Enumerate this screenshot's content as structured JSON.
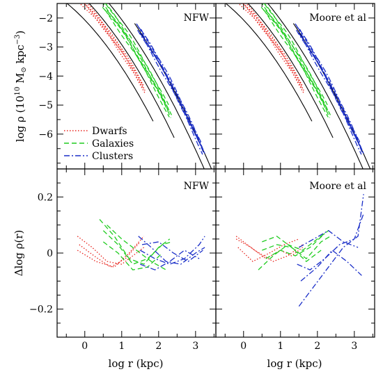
{
  "chart_data": {
    "type": "line",
    "x_range": [
      -0.75,
      3.55
    ],
    "x_ticks": [
      0,
      1,
      2,
      3
    ],
    "x_label": "log r (kpc)",
    "top": {
      "y_range": [
        -7.2,
        -1.5
      ],
      "y_ticks": [
        -2,
        -3,
        -4,
        -5,
        -6
      ],
      "y_label_prefix": "log ρ (10",
      "y_label_exp1": "10",
      "y_label_mid": " M",
      "y_label_sun": "⊙",
      "y_label_mid2": " kpc",
      "y_label_exp2": "−3",
      "y_label_suffix": ")"
    },
    "bottom": {
      "y_range": [
        -0.3,
        0.3
      ],
      "y_ticks": [
        0.2,
        0,
        -0.2
      ],
      "y_label": "Δlog ρ(r)"
    },
    "panels": [
      {
        "label": "NFW"
      },
      {
        "label": "Moore et al"
      }
    ],
    "legend": {
      "placement": "bottom-left of top-left panel",
      "entries": [
        {
          "name": "Dwarfs",
          "style": "dotted",
          "color": "#e8231c"
        },
        {
          "name": "Galaxies",
          "style": "dashed",
          "color": "#1fcc1f"
        },
        {
          "name": "Clusters",
          "style": "dashdot",
          "color": "#1a2ec8"
        }
      ]
    },
    "profile_series": [
      {
        "group": "Dwarfs",
        "range": [
          -0.25,
          1.65
        ],
        "offsets": [
          0,
          -0.06,
          0.05,
          -0.1,
          0.08
        ]
      },
      {
        "group": "Galaxies",
        "range": [
          0.45,
          2.35
        ],
        "offsets": [
          0,
          -0.1,
          0.08,
          -0.18,
          0.14,
          -0.05
        ]
      },
      {
        "group": "Clusters",
        "range": [
          1.4,
          3.25
        ],
        "offsets": [
          0,
          -0.08,
          0.06,
          -0.14,
          0.1,
          -0.04
        ]
      }
    ],
    "model_curves": [
      {
        "x_start": -0.75,
        "x_end": 1.85,
        "a": -2.07,
        "b": -1.33,
        "c": -0.3
      },
      {
        "x_start": -0.1,
        "x_end": 2.45,
        "a": -1.34,
        "b": -1.3,
        "c": -0.28
      },
      {
        "x_start": 0.65,
        "x_end": 3.4,
        "a": -0.6,
        "b": -1.2,
        "c": -0.26
      },
      {
        "x_start": 1.35,
        "x_end": 3.55,
        "a": -0.05,
        "b": -1.26,
        "c": -0.24
      }
    ],
    "residual_series": {
      "NFW": [
        {
          "group": "Dwarfs",
          "x": [
            -0.2,
            0.2,
            0.6,
            1.0,
            1.3,
            1.6
          ],
          "y": [
            0.06,
            0.02,
            -0.03,
            -0.04,
            -0.01,
            0.02
          ]
        },
        {
          "group": "Dwarfs",
          "x": [
            -0.15,
            0.25,
            0.7,
            1.1,
            1.5
          ],
          "y": [
            0.03,
            -0.01,
            -0.05,
            -0.02,
            0.04
          ]
        },
        {
          "group": "Dwarfs",
          "x": [
            -0.2,
            0.3,
            0.8,
            1.2,
            1.6
          ],
          "y": [
            0.01,
            -0.03,
            -0.05,
            0.0,
            0.06
          ]
        },
        {
          "group": "Galaxies",
          "x": [
            0.4,
            0.8,
            1.2,
            1.6,
            2.0,
            2.3
          ],
          "y": [
            0.12,
            0.06,
            -0.02,
            -0.04,
            0.02,
            0.05
          ]
        },
        {
          "group": "Galaxies",
          "x": [
            0.5,
            0.9,
            1.3,
            1.7,
            2.1,
            2.35
          ],
          "y": [
            0.08,
            0.03,
            -0.04,
            -0.02,
            0.03,
            0.04
          ]
        },
        {
          "group": "Galaxies",
          "x": [
            0.5,
            0.9,
            1.3,
            1.7,
            2.1
          ],
          "y": [
            0.04,
            0.0,
            -0.06,
            -0.05,
            0.0
          ]
        },
        {
          "group": "Galaxies",
          "x": [
            0.6,
            1.0,
            1.4,
            1.8,
            2.2
          ],
          "y": [
            0.1,
            0.05,
            0.01,
            -0.03,
            -0.06
          ]
        },
        {
          "group": "Clusters",
          "x": [
            1.45,
            1.8,
            2.2,
            2.6,
            3.0,
            3.25
          ],
          "y": [
            0.06,
            0.02,
            -0.03,
            -0.04,
            0.0,
            0.02
          ]
        },
        {
          "group": "Clusters",
          "x": [
            1.5,
            1.9,
            2.3,
            2.7,
            3.1,
            3.25
          ],
          "y": [
            0.01,
            -0.02,
            -0.04,
            -0.02,
            0.03,
            0.06
          ]
        },
        {
          "group": "Clusters",
          "x": [
            1.5,
            1.9,
            2.3,
            2.7,
            3.1
          ],
          "y": [
            -0.04,
            -0.06,
            -0.03,
            0.01,
            -0.02
          ]
        },
        {
          "group": "Clusters",
          "x": [
            1.55,
            2.0,
            2.4,
            2.8,
            3.2
          ],
          "y": [
            0.03,
            0.04,
            0.0,
            -0.03,
            0.01
          ]
        }
      ],
      "Moore et al": [
        {
          "group": "Dwarfs",
          "x": [
            -0.2,
            0.2,
            0.6,
            1.0,
            1.3,
            1.6
          ],
          "y": [
            0.05,
            0.02,
            -0.02,
            0.01,
            -0.01,
            0.02
          ]
        },
        {
          "group": "Dwarfs",
          "x": [
            -0.15,
            0.25,
            0.7,
            1.1,
            1.5
          ],
          "y": [
            0.02,
            -0.03,
            0.0,
            0.03,
            0.05
          ]
        },
        {
          "group": "Dwarfs",
          "x": [
            -0.2,
            0.3,
            0.8,
            1.2,
            1.6
          ],
          "y": [
            0.06,
            0.01,
            -0.03,
            -0.01,
            0.03
          ]
        },
        {
          "group": "Galaxies",
          "x": [
            0.4,
            0.8,
            1.2,
            1.6,
            2.0,
            2.3
          ],
          "y": [
            -0.06,
            -0.01,
            0.03,
            0.01,
            0.05,
            0.08
          ]
        },
        {
          "group": "Galaxies",
          "x": [
            0.5,
            0.9,
            1.3,
            1.7,
            2.1,
            2.35
          ],
          "y": [
            0.01,
            0.03,
            0.02,
            -0.02,
            0.04,
            0.06
          ]
        },
        {
          "group": "Galaxies",
          "x": [
            0.5,
            0.9,
            1.3,
            1.7,
            2.1
          ],
          "y": [
            0.04,
            0.06,
            0.02,
            -0.03,
            0.01
          ]
        },
        {
          "group": "Galaxies",
          "x": [
            0.6,
            1.0,
            1.4,
            1.8,
            2.2
          ],
          "y": [
            -0.02,
            0.01,
            -0.01,
            0.02,
            0.07
          ]
        },
        {
          "group": "Clusters",
          "x": [
            1.45,
            1.8,
            2.2,
            2.6,
            3.0,
            3.25
          ],
          "y": [
            -0.04,
            -0.06,
            -0.02,
            0.03,
            0.05,
            0.14
          ]
        },
        {
          "group": "Clusters",
          "x": [
            1.5,
            1.9,
            2.3,
            2.7,
            3.1,
            3.25
          ],
          "y": [
            -0.19,
            -0.12,
            -0.05,
            0.02,
            0.06,
            0.21
          ]
        },
        {
          "group": "Clusters",
          "x": [
            1.5,
            1.9,
            2.3,
            2.7,
            3.1
          ],
          "y": [
            0.02,
            0.05,
            0.08,
            0.04,
            0.02
          ]
        },
        {
          "group": "Clusters",
          "x": [
            1.55,
            2.0,
            2.4,
            2.8,
            3.2
          ],
          "y": [
            -0.1,
            -0.05,
            0.01,
            -0.03,
            -0.08
          ]
        }
      ]
    }
  }
}
